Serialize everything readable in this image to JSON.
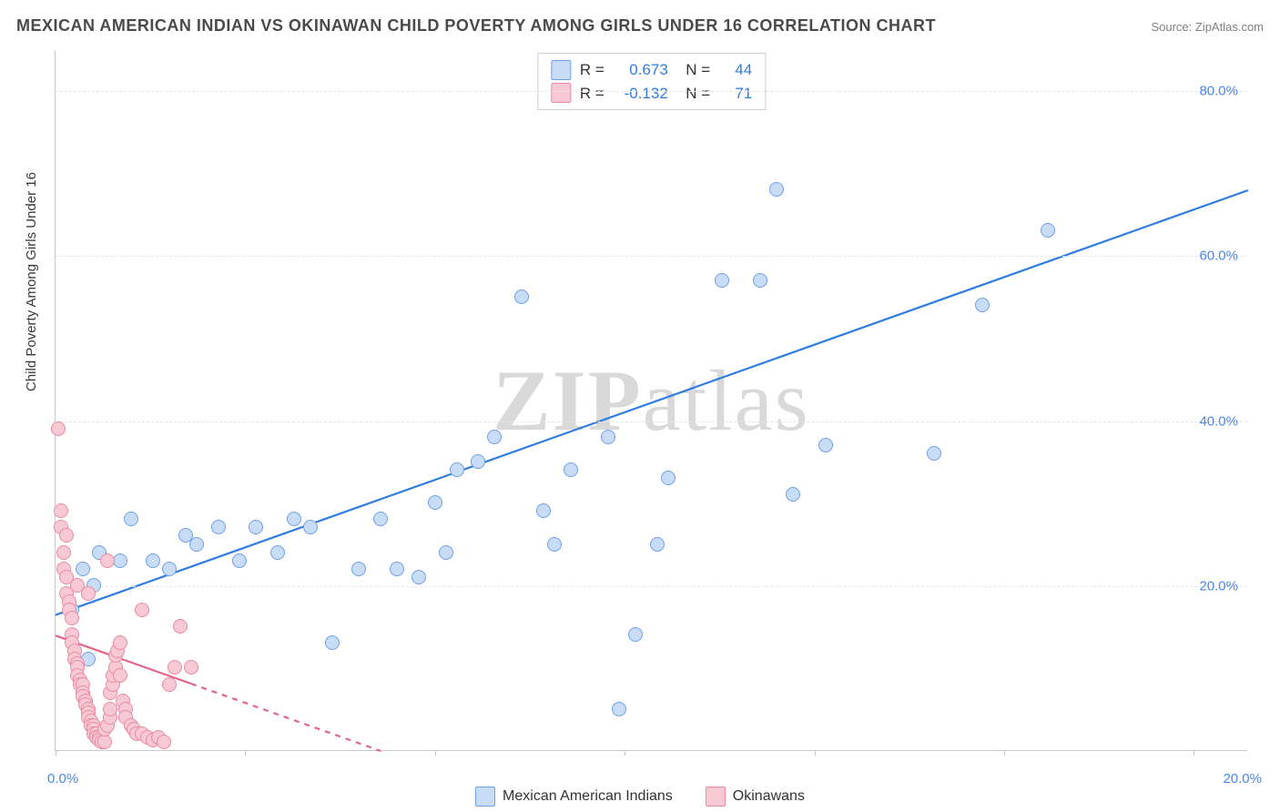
{
  "title": "MEXICAN AMERICAN INDIAN VS OKINAWAN CHILD POVERTY AMONG GIRLS UNDER 16 CORRELATION CHART",
  "source_label": "Source: ZipAtlas.com",
  "y_axis_label": "Child Poverty Among Girls Under 16",
  "watermark": "ZIPatlas",
  "chart": {
    "type": "scatter",
    "xlim": [
      0,
      22
    ],
    "ylim": [
      0,
      85
    ],
    "y_ticks": [
      20,
      40,
      60,
      80
    ],
    "y_tick_labels": [
      "20.0%",
      "40.0%",
      "60.0%",
      "80.0%"
    ],
    "x_ticks": [
      0,
      3.5,
      7,
      10.5,
      14,
      17.5,
      21
    ],
    "x_min_label": "0.0%",
    "x_max_label": "20.0%",
    "background_color": "#ffffff",
    "grid_color": "#e6e6e6",
    "axis_color": "#c9c9c9",
    "tick_label_color": "#4a86e8",
    "marker_radius": 8,
    "marker_stroke_width": 1,
    "series": [
      {
        "name": "Mexican American Indians",
        "fill": "#c9dcf5",
        "stroke": "#6fa0e6",
        "line_color": "#2f7de1",
        "line_width": 2.2,
        "line": {
          "x1": 0,
          "y1": 16.5,
          "x2": 22,
          "y2": 68
        },
        "line_dash_after_x": null,
        "R": "0.673",
        "N": "44",
        "points": [
          [
            0.3,
            17
          ],
          [
            0.5,
            22
          ],
          [
            0.6,
            11
          ],
          [
            0.7,
            20
          ],
          [
            0.8,
            24
          ],
          [
            1.2,
            23
          ],
          [
            1.4,
            28
          ],
          [
            1.8,
            23
          ],
          [
            2.1,
            22
          ],
          [
            2.4,
            26
          ],
          [
            2.6,
            25
          ],
          [
            3.0,
            27
          ],
          [
            3.7,
            27
          ],
          [
            3.4,
            23
          ],
          [
            4.1,
            24
          ],
          [
            4.4,
            28
          ],
          [
            4.7,
            27
          ],
          [
            5.1,
            13
          ],
          [
            6.3,
            22
          ],
          [
            6.7,
            21
          ],
          [
            7.0,
            30
          ],
          [
            7.4,
            34
          ],
          [
            7.8,
            35
          ],
          [
            8.1,
            38
          ],
          [
            8.6,
            55
          ],
          [
            9.0,
            29
          ],
          [
            9.2,
            25
          ],
          [
            9.5,
            34
          ],
          [
            10.2,
            38
          ],
          [
            10.4,
            5
          ],
          [
            10.7,
            14
          ],
          [
            11.1,
            25
          ],
          [
            11.3,
            33
          ],
          [
            12.3,
            57
          ],
          [
            13.0,
            57
          ],
          [
            13.3,
            68
          ],
          [
            13.6,
            31
          ],
          [
            14.2,
            37
          ],
          [
            16.2,
            36
          ],
          [
            17.1,
            54
          ],
          [
            18.3,
            63
          ],
          [
            7.2,
            24
          ],
          [
            5.6,
            22
          ],
          [
            6.0,
            28
          ]
        ]
      },
      {
        "name": "Okinawans",
        "fill": "#f6c9d4",
        "stroke": "#e88ba2",
        "line_color": "#e36488",
        "line_width": 2.2,
        "line": {
          "x1": 0,
          "y1": 14,
          "x2": 6,
          "y2": 0
        },
        "line_dash_after_x": 2.5,
        "R": "-0.132",
        "N": "71",
        "points": [
          [
            0.05,
            39
          ],
          [
            0.1,
            29
          ],
          [
            0.1,
            27
          ],
          [
            0.15,
            24
          ],
          [
            0.15,
            22
          ],
          [
            0.2,
            26
          ],
          [
            0.2,
            21
          ],
          [
            0.2,
            19
          ],
          [
            0.25,
            18
          ],
          [
            0.25,
            17
          ],
          [
            0.3,
            16
          ],
          [
            0.3,
            14
          ],
          [
            0.3,
            13
          ],
          [
            0.35,
            12
          ],
          [
            0.35,
            11
          ],
          [
            0.4,
            10.5
          ],
          [
            0.4,
            10
          ],
          [
            0.4,
            9
          ],
          [
            0.45,
            8.5
          ],
          [
            0.45,
            8
          ],
          [
            0.5,
            8
          ],
          [
            0.5,
            7
          ],
          [
            0.5,
            6.5
          ],
          [
            0.55,
            6
          ],
          [
            0.55,
            5.5
          ],
          [
            0.6,
            5
          ],
          [
            0.6,
            4.5
          ],
          [
            0.6,
            4
          ],
          [
            0.65,
            3.5
          ],
          [
            0.65,
            3
          ],
          [
            0.7,
            3
          ],
          [
            0.7,
            2.5
          ],
          [
            0.7,
            2
          ],
          [
            0.75,
            2
          ],
          [
            0.75,
            1.5
          ],
          [
            0.8,
            1.5
          ],
          [
            0.8,
            1.2
          ],
          [
            0.85,
            1
          ],
          [
            0.85,
            1
          ],
          [
            0.9,
            1
          ],
          [
            0.9,
            2.5
          ],
          [
            0.95,
            3
          ],
          [
            1.0,
            4
          ],
          [
            1.0,
            5
          ],
          [
            1.0,
            7
          ],
          [
            1.05,
            8
          ],
          [
            1.05,
            9
          ],
          [
            1.1,
            10
          ],
          [
            1.1,
            11.5
          ],
          [
            1.15,
            12
          ],
          [
            1.2,
            13
          ],
          [
            1.2,
            9
          ],
          [
            1.25,
            6
          ],
          [
            1.3,
            5
          ],
          [
            1.3,
            4
          ],
          [
            1.4,
            3
          ],
          [
            1.45,
            2.5
          ],
          [
            1.5,
            2
          ],
          [
            1.6,
            2
          ],
          [
            1.7,
            1.5
          ],
          [
            1.8,
            1.2
          ],
          [
            1.9,
            1.5
          ],
          [
            2.0,
            1
          ],
          [
            2.1,
            8
          ],
          [
            2.2,
            10
          ],
          [
            2.3,
            15
          ],
          [
            2.5,
            10
          ],
          [
            1.6,
            17
          ],
          [
            0.95,
            23
          ],
          [
            0.4,
            20
          ],
          [
            0.6,
            19
          ]
        ]
      }
    ]
  },
  "stats_box": {
    "rows": [
      {
        "swatch_fill": "#c9dcf5",
        "swatch_stroke": "#6fa0e6",
        "R": "0.673",
        "N": "44"
      },
      {
        "swatch_fill": "#f6c9d4",
        "swatch_stroke": "#e88ba2",
        "R": "-0.132",
        "N": "71"
      }
    ]
  },
  "bottom_legend": [
    {
      "swatch_fill": "#c9dcf5",
      "swatch_stroke": "#6fa0e6",
      "label": "Mexican American Indians"
    },
    {
      "swatch_fill": "#f6c9d4",
      "swatch_stroke": "#e88ba2",
      "label": "Okinawans"
    }
  ],
  "title_fontsize": 18,
  "label_fontsize": 15
}
